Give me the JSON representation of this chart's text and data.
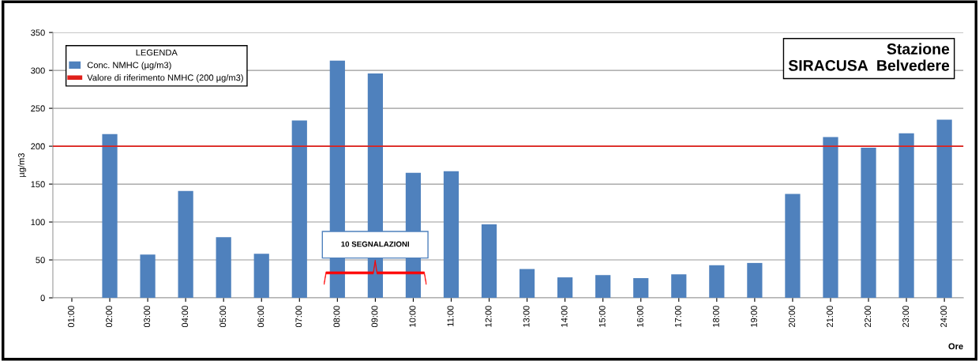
{
  "chart_data": {
    "type": "bar",
    "title": "Stazione\nSIRACUSA  Belvedere",
    "xlabel": "Ore",
    "ylabel": "µg/m3",
    "legend_title": "LEGENDA",
    "categories": [
      "01:00",
      "02:00",
      "03:00",
      "04:00",
      "05:00",
      "06:00",
      "07:00",
      "08:00",
      "09:00",
      "10:00",
      "11:00",
      "12:00",
      "13:00",
      "14:00",
      "15:00",
      "16:00",
      "17:00",
      "18:00",
      "19:00",
      "20:00",
      "21:00",
      "22:00",
      "23:00",
      "24:00"
    ],
    "series": [
      {
        "name": "Conc. NMHC (µg/m3)",
        "color": "#4f81bd",
        "values": [
          null,
          216,
          57,
          141,
          80,
          58,
          234,
          313,
          296,
          165,
          167,
          97,
          38,
          27,
          30,
          26,
          31,
          43,
          46,
          137,
          212,
          198,
          217,
          235
        ]
      }
    ],
    "ref_lines": [
      {
        "axis": "y",
        "value": 200,
        "label": "Valore di riferimento NMHC (200 µg/m3)",
        "color": "#e0201b"
      }
    ],
    "annotations": [
      "10 SEGNALAZIONI"
    ],
    "ylim": [
      0,
      350
    ],
    "yticks": [
      0,
      50,
      100,
      150,
      200,
      250,
      300,
      350
    ],
    "grid": "y",
    "legend": "top left"
  }
}
